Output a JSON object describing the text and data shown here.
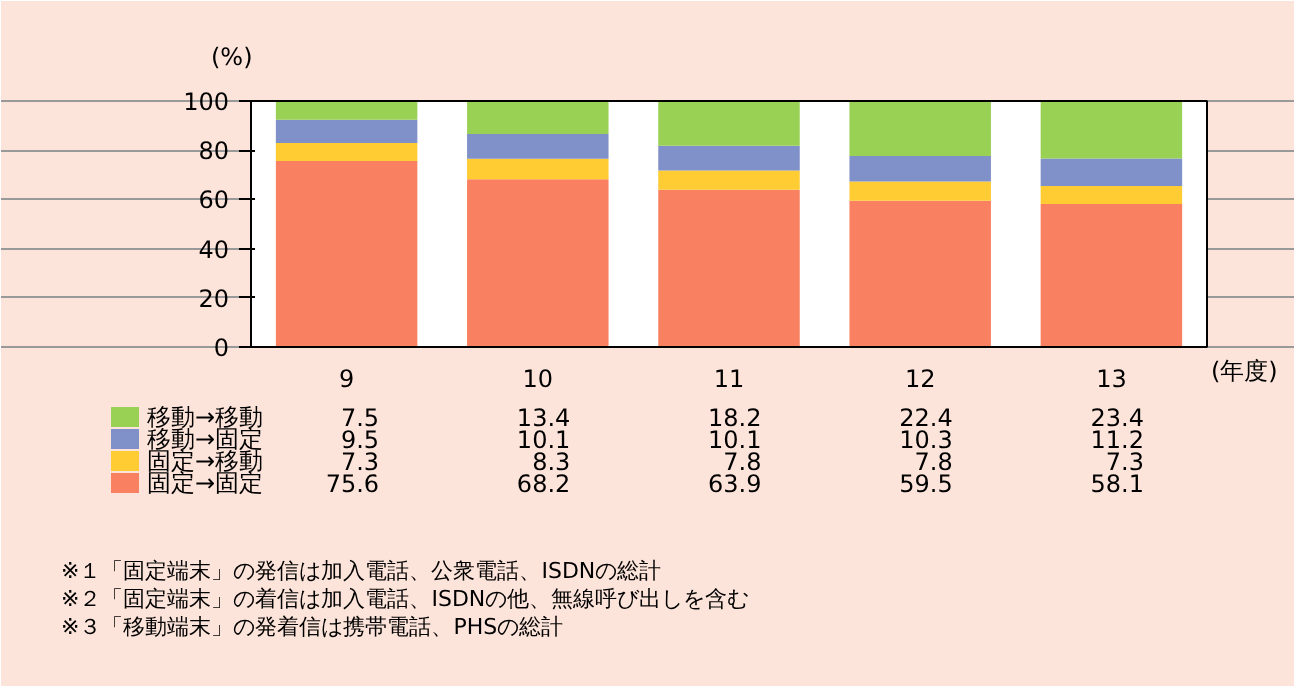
{
  "chart_data": {
    "type": "bar",
    "stacked": true,
    "ylabel": "(%)",
    "xlabel": "(年度)",
    "categories": [
      "9",
      "10",
      "11",
      "12",
      "13"
    ],
    "series": [
      {
        "name": "固定→固定",
        "color": "#f98060",
        "values": [
          75.6,
          68.2,
          63.9,
          59.5,
          58.1
        ]
      },
      {
        "name": "固定→移動",
        "color": "#ffcc33",
        "values": [
          7.3,
          8.3,
          7.8,
          7.8,
          7.3
        ]
      },
      {
        "name": "移動→固定",
        "color": "#8090c8",
        "values": [
          9.5,
          10.1,
          10.1,
          10.3,
          11.2
        ]
      },
      {
        "name": "移動→移動",
        "color": "#99d155",
        "values": [
          7.5,
          13.4,
          18.2,
          22.4,
          23.4
        ]
      }
    ],
    "ylim": [
      0,
      100
    ],
    "yticks": [
      0,
      20,
      40,
      60,
      80,
      100
    ],
    "grid": "y",
    "legend": "bottom",
    "data_labels": true,
    "annotations": [
      "※１「固定端末」の発信は加入電話、公衆電話、ISDNの総計",
      "※２「固定端末」の着信は加入電話、ISDNの他、無線呼び出しを含む",
      "※３「移動端末」の発着信は携帯電話、PHSの総計"
    ]
  }
}
